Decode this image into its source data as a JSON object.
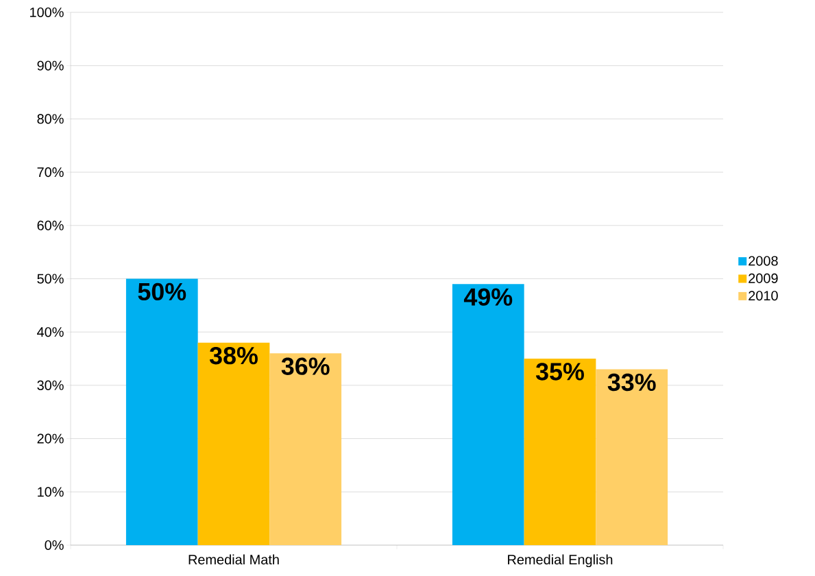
{
  "chart_data": {
    "type": "bar",
    "categories": [
      "Remedial Math",
      "Remedial English"
    ],
    "series": [
      {
        "name": "2008",
        "color": "#00b0f0",
        "values": [
          50,
          49
        ],
        "value_labels": [
          "50%",
          "49%"
        ]
      },
      {
        "name": "2009",
        "color": "#ffc000",
        "values": [
          38,
          35
        ],
        "value_labels": [
          "38%",
          "35%"
        ]
      },
      {
        "name": "2010",
        "color": "#ffcf66",
        "values": [
          36,
          33
        ],
        "value_labels": [
          "36%",
          "33%"
        ]
      }
    ],
    "ylim": [
      0,
      100
    ],
    "yticks": [
      {
        "value": 0,
        "label": "0%"
      },
      {
        "value": 10,
        "label": "10%"
      },
      {
        "value": 20,
        "label": "20%"
      },
      {
        "value": 30,
        "label": "30%"
      },
      {
        "value": 40,
        "label": "40%"
      },
      {
        "value": 50,
        "label": "50%"
      },
      {
        "value": 60,
        "label": "60%"
      },
      {
        "value": 70,
        "label": "70%"
      },
      {
        "value": 80,
        "label": "80%"
      },
      {
        "value": 90,
        "label": "90%"
      },
      {
        "value": 100,
        "label": "100%"
      }
    ],
    "grid": "y",
    "legend": "right"
  }
}
